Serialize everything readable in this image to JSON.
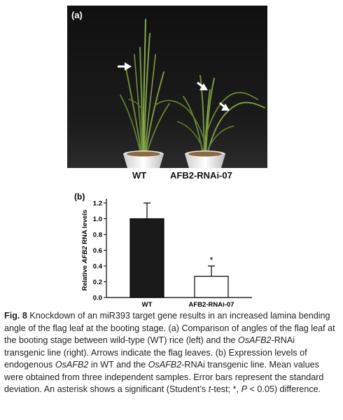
{
  "panel_a": {
    "label": "(a)",
    "sample_labels": [
      "WT",
      "AFB2-RNAi-07"
    ],
    "background_color": "#0a0a0a"
  },
  "panel_b": {
    "label": "(b)"
  },
  "chart_data": {
    "type": "bar",
    "categories": [
      "WT",
      "AFB2-RNAi-07"
    ],
    "series": [
      {
        "values": [
          1.0,
          0.27
        ],
        "errors": [
          0.2,
          0.13
        ],
        "colors": [
          "#1a1a1a",
          "#ffffff"
        ]
      }
    ],
    "ylabel_parts": [
      "Relative ",
      "AFB2",
      " RNA levels"
    ],
    "ylim": [
      0,
      1.2
    ],
    "yticks": [
      "0.0",
      "0.2",
      "0.4",
      "0.6",
      "0.8",
      "1.0",
      "1.2"
    ],
    "annotations": [
      {
        "category": "AFB2-RNAi-07",
        "text": "*"
      }
    ],
    "grid": false
  },
  "caption": {
    "fig_label": "Fig. 8",
    "segments": [
      {
        "text": " Knockdown of an miR393 target gene results in an increased lamina bending angle of the flag leaf at the booting stage. (a) Comparison of angles of the flag leaf at the booting stage between wild-type (WT) rice (left) and the ",
        "italic": false
      },
      {
        "text": "OsAFB2",
        "italic": true
      },
      {
        "text": "-RNAi transgenic line (right). Arrows indicate the flag leaves. (b) Expression levels of endogenous ",
        "italic": false
      },
      {
        "text": "OsAFB2",
        "italic": true
      },
      {
        "text": " in WT and the ",
        "italic": false
      },
      {
        "text": "OsAFB2",
        "italic": true
      },
      {
        "text": "-RNAi transgenic line. Mean values were obtained from three independent samples. Error bars represent the standard deviation. An asterisk shows a significant (Student’s ",
        "italic": false
      },
      {
        "text": "t",
        "italic": true
      },
      {
        "text": "-test; *, ",
        "italic": false
      },
      {
        "text": "P",
        "italic": true
      },
      {
        "text": " < 0.05) difference.",
        "italic": false
      }
    ]
  }
}
